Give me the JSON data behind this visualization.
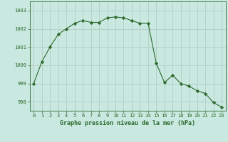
{
  "x": [
    0,
    1,
    2,
    3,
    4,
    5,
    6,
    7,
    8,
    9,
    10,
    11,
    12,
    13,
    14,
    15,
    16,
    17,
    18,
    19,
    20,
    21,
    22,
    23
  ],
  "y": [
    999.0,
    1000.2,
    1001.0,
    1001.7,
    1002.0,
    1002.3,
    1002.45,
    1002.35,
    1002.35,
    1002.6,
    1002.65,
    1002.6,
    1002.45,
    1002.3,
    1002.3,
    1000.1,
    999.05,
    999.45,
    999.0,
    998.85,
    998.6,
    998.45,
    997.95,
    997.7
  ],
  "line_color": "#2d6a2d",
  "marker": "D",
  "marker_size": 2.2,
  "bg_color": "#c8e8e0",
  "grid_color": "#b0c8c0",
  "ylim": [
    997.5,
    1003.5
  ],
  "yticks": [
    998,
    999,
    1000,
    1001,
    1002,
    1003
  ],
  "xticks": [
    0,
    1,
    2,
    3,
    4,
    5,
    6,
    7,
    8,
    9,
    10,
    11,
    12,
    13,
    14,
    15,
    16,
    17,
    18,
    19,
    20,
    21,
    22,
    23
  ],
  "tick_color": "#2d6a2d",
  "tick_fontsize": 5.0,
  "label_fontsize": 6.0,
  "label_fontweight": "bold",
  "xlabel": "Graphe pression niveau de la mer (hPa)"
}
